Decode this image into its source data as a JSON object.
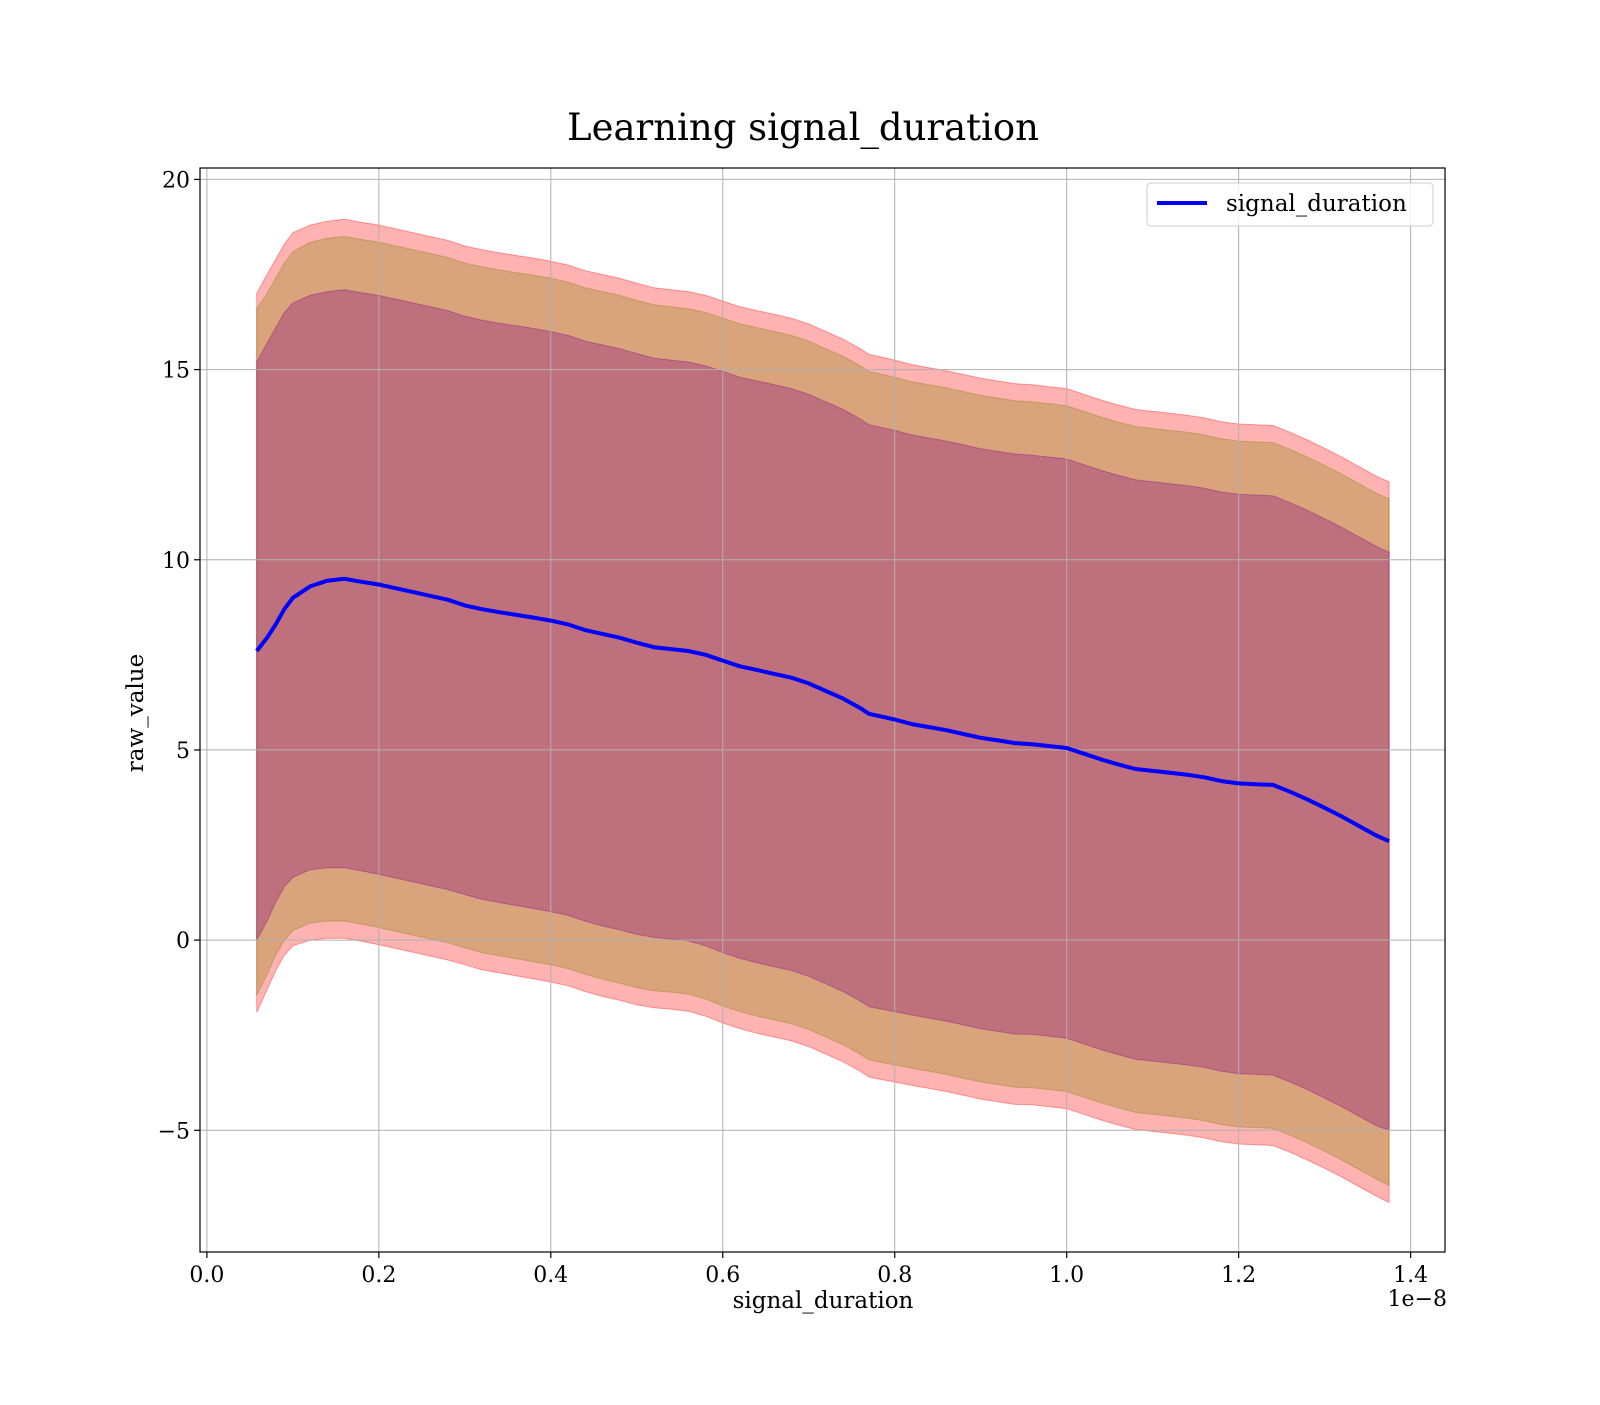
{
  "chart_data": {
    "type": "area",
    "title": "Learning signal_duration",
    "xlabel": "signal_duration",
    "ylabel": "raw_value",
    "x_offset_label": "1e−8",
    "xlim": [
      -0.008,
      1.44
    ],
    "ylim": [
      -8.2,
      20.3
    ],
    "x_ticks": [
      0.0,
      0.2,
      0.4,
      0.6,
      0.8,
      1.0,
      1.2,
      1.4
    ],
    "x_tick_labels": [
      "0.0",
      "0.2",
      "0.4",
      "0.6",
      "0.8",
      "1.0",
      "1.2",
      "1.4"
    ],
    "y_ticks": [
      -5,
      0,
      5,
      10,
      15,
      20
    ],
    "y_tick_labels": [
      "−5",
      "0",
      "5",
      "10",
      "15",
      "20"
    ],
    "grid": true,
    "legend": {
      "position": "top-right",
      "entries": [
        "signal_duration"
      ]
    },
    "x": [
      0.058,
      0.07,
      0.08,
      0.09,
      0.1,
      0.12,
      0.14,
      0.16,
      0.18,
      0.2,
      0.22,
      0.24,
      0.26,
      0.28,
      0.3,
      0.32,
      0.34,
      0.36,
      0.38,
      0.4,
      0.42,
      0.44,
      0.46,
      0.48,
      0.5,
      0.52,
      0.54,
      0.56,
      0.58,
      0.6,
      0.62,
      0.64,
      0.66,
      0.68,
      0.7,
      0.72,
      0.74,
      0.76,
      0.77,
      0.8,
      0.82,
      0.84,
      0.86,
      0.88,
      0.9,
      0.92,
      0.94,
      0.96,
      0.98,
      1.0,
      1.02,
      1.04,
      1.06,
      1.08,
      1.1,
      1.12,
      1.14,
      1.16,
      1.18,
      1.2,
      1.22,
      1.24,
      1.26,
      1.28,
      1.3,
      1.32,
      1.34,
      1.36,
      1.375
    ],
    "series": [
      {
        "name": "signal_duration",
        "color": "#0000ff",
        "values": [
          7.6,
          7.95,
          8.3,
          8.7,
          9.0,
          9.3,
          9.45,
          9.5,
          9.42,
          9.35,
          9.25,
          9.15,
          9.05,
          8.95,
          8.8,
          8.7,
          8.62,
          8.55,
          8.48,
          8.4,
          8.3,
          8.15,
          8.05,
          7.95,
          7.82,
          7.7,
          7.65,
          7.6,
          7.5,
          7.35,
          7.2,
          7.1,
          7.0,
          6.9,
          6.75,
          6.55,
          6.35,
          6.1,
          5.95,
          5.8,
          5.68,
          5.6,
          5.52,
          5.42,
          5.32,
          5.25,
          5.18,
          5.15,
          5.1,
          5.05,
          4.9,
          4.75,
          4.62,
          4.5,
          4.45,
          4.4,
          4.35,
          4.28,
          4.18,
          4.12,
          4.1,
          4.08,
          3.9,
          3.7,
          3.48,
          3.25,
          3.0,
          2.75,
          2.6
        ]
      }
    ],
    "bands": [
      {
        "role": "outer",
        "color": "#ff0000",
        "opacity": 0.3,
        "lower": [
          -1.9,
          -1.3,
          -0.8,
          -0.4,
          -0.15,
          0.0,
          0.05,
          0.05,
          -0.03,
          -0.12,
          -0.22,
          -0.32,
          -0.42,
          -0.52,
          -0.65,
          -0.78,
          -0.86,
          -0.94,
          -1.02,
          -1.1,
          -1.2,
          -1.35,
          -1.48,
          -1.58,
          -1.7,
          -1.78,
          -1.82,
          -1.87,
          -2.0,
          -2.18,
          -2.33,
          -2.45,
          -2.55,
          -2.65,
          -2.8,
          -3.0,
          -3.2,
          -3.45,
          -3.6,
          -3.73,
          -3.82,
          -3.9,
          -3.98,
          -4.08,
          -4.18,
          -4.25,
          -4.32,
          -4.33,
          -4.38,
          -4.43,
          -4.58,
          -4.73,
          -4.86,
          -4.98,
          -5.03,
          -5.08,
          -5.13,
          -5.2,
          -5.3,
          -5.36,
          -5.38,
          -5.4,
          -5.58,
          -5.78,
          -6.0,
          -6.23,
          -6.48,
          -6.73,
          -6.9
        ],
        "upper": [
          17.0,
          17.5,
          17.9,
          18.3,
          18.6,
          18.8,
          18.9,
          18.95,
          18.87,
          18.8,
          18.7,
          18.6,
          18.5,
          18.4,
          18.25,
          18.15,
          18.07,
          18.0,
          17.93,
          17.85,
          17.75,
          17.6,
          17.5,
          17.4,
          17.27,
          17.15,
          17.1,
          17.05,
          16.95,
          16.8,
          16.65,
          16.55,
          16.45,
          16.35,
          16.2,
          16.0,
          15.8,
          15.55,
          15.4,
          15.25,
          15.13,
          15.05,
          14.97,
          14.87,
          14.77,
          14.7,
          14.63,
          14.6,
          14.55,
          14.5,
          14.35,
          14.2,
          14.07,
          13.95,
          13.9,
          13.85,
          13.8,
          13.73,
          13.63,
          13.57,
          13.55,
          13.53,
          13.35,
          13.15,
          12.93,
          12.7,
          12.45,
          12.2,
          12.05
        ]
      },
      {
        "role": "middle",
        "color": "#808000",
        "opacity": 0.3,
        "lower": [
          -1.45,
          -0.9,
          -0.4,
          0.0,
          0.25,
          0.45,
          0.5,
          0.5,
          0.42,
          0.33,
          0.23,
          0.13,
          0.03,
          -0.07,
          -0.2,
          -0.33,
          -0.41,
          -0.49,
          -0.57,
          -0.65,
          -0.75,
          -0.9,
          -1.03,
          -1.13,
          -1.25,
          -1.33,
          -1.37,
          -1.42,
          -1.55,
          -1.73,
          -1.88,
          -2.0,
          -2.1,
          -2.2,
          -2.35,
          -2.55,
          -2.75,
          -3.0,
          -3.15,
          -3.28,
          -3.37,
          -3.45,
          -3.53,
          -3.63,
          -3.73,
          -3.8,
          -3.87,
          -3.88,
          -3.93,
          -3.98,
          -4.13,
          -4.28,
          -4.41,
          -4.53,
          -4.58,
          -4.63,
          -4.68,
          -4.75,
          -4.85,
          -4.91,
          -4.93,
          -4.95,
          -5.13,
          -5.33,
          -5.55,
          -5.78,
          -6.03,
          -6.28,
          -6.45
        ],
        "upper": [
          16.6,
          17.0,
          17.4,
          17.8,
          18.1,
          18.35,
          18.45,
          18.5,
          18.42,
          18.35,
          18.25,
          18.15,
          18.05,
          17.95,
          17.8,
          17.7,
          17.62,
          17.55,
          17.48,
          17.4,
          17.3,
          17.15,
          17.05,
          16.95,
          16.82,
          16.7,
          16.65,
          16.6,
          16.5,
          16.35,
          16.2,
          16.1,
          16.0,
          15.9,
          15.75,
          15.55,
          15.35,
          15.1,
          14.95,
          14.8,
          14.68,
          14.6,
          14.52,
          14.42,
          14.32,
          14.25,
          14.18,
          14.15,
          14.1,
          14.05,
          13.9,
          13.75,
          13.62,
          13.5,
          13.45,
          13.4,
          13.35,
          13.28,
          13.18,
          13.12,
          13.1,
          13.08,
          12.9,
          12.7,
          12.48,
          12.25,
          12.0,
          11.75,
          11.6
        ]
      },
      {
        "role": "inner",
        "color": "#800080",
        "opacity": 0.3,
        "lower": [
          0.0,
          0.5,
          1.0,
          1.4,
          1.65,
          1.85,
          1.9,
          1.9,
          1.82,
          1.73,
          1.63,
          1.53,
          1.43,
          1.33,
          1.2,
          1.07,
          0.99,
          0.91,
          0.83,
          0.75,
          0.65,
          0.5,
          0.37,
          0.27,
          0.15,
          0.07,
          0.03,
          -0.02,
          -0.15,
          -0.33,
          -0.48,
          -0.6,
          -0.7,
          -0.8,
          -0.95,
          -1.15,
          -1.35,
          -1.6,
          -1.75,
          -1.88,
          -1.97,
          -2.05,
          -2.13,
          -2.23,
          -2.33,
          -2.4,
          -2.47,
          -2.48,
          -2.53,
          -2.58,
          -2.73,
          -2.88,
          -3.01,
          -3.13,
          -3.18,
          -3.23,
          -3.28,
          -3.35,
          -3.45,
          -3.51,
          -3.53,
          -3.55,
          -3.73,
          -3.93,
          -4.15,
          -4.38,
          -4.63,
          -4.88,
          -5.0
        ],
        "upper": [
          15.2,
          15.7,
          16.1,
          16.5,
          16.75,
          16.95,
          17.05,
          17.1,
          17.02,
          16.95,
          16.85,
          16.75,
          16.65,
          16.55,
          16.4,
          16.3,
          16.22,
          16.15,
          16.08,
          16.0,
          15.9,
          15.75,
          15.65,
          15.55,
          15.42,
          15.3,
          15.25,
          15.2,
          15.1,
          14.95,
          14.8,
          14.7,
          14.6,
          14.5,
          14.35,
          14.15,
          13.95,
          13.7,
          13.55,
          13.4,
          13.28,
          13.2,
          13.12,
          13.02,
          12.92,
          12.85,
          12.78,
          12.75,
          12.7,
          12.65,
          12.5,
          12.35,
          12.22,
          12.1,
          12.05,
          12.0,
          11.95,
          11.88,
          11.78,
          11.72,
          11.7,
          11.68,
          11.5,
          11.3,
          11.08,
          10.85,
          10.6,
          10.35,
          10.2
        ]
      }
    ]
  }
}
